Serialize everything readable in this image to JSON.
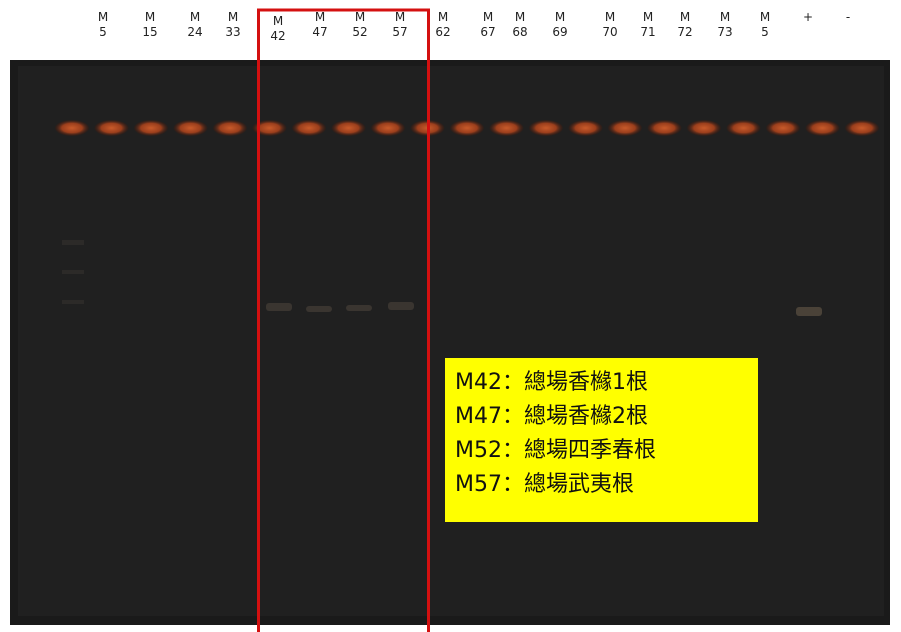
{
  "lanes": [
    {
      "top": "M",
      "bottom": "5"
    },
    {
      "top": "M",
      "bottom": "15"
    },
    {
      "top": "M",
      "bottom": "24"
    },
    {
      "top": "M",
      "bottom": "33"
    },
    {
      "top": "M",
      "bottom": "42"
    },
    {
      "top": "M",
      "bottom": "47"
    },
    {
      "top": "M",
      "bottom": "52"
    },
    {
      "top": "M",
      "bottom": "57"
    },
    {
      "top": "M",
      "bottom": "62"
    },
    {
      "top": "M",
      "bottom": "67"
    },
    {
      "top": "M",
      "bottom": "68"
    },
    {
      "top": "M",
      "bottom": "69"
    },
    {
      "top": "M",
      "bottom": "70"
    },
    {
      "top": "M",
      "bottom": "71"
    },
    {
      "top": "M",
      "bottom": "72"
    },
    {
      "top": "M",
      "bottom": "73"
    },
    {
      "top": "M",
      "bottom": "5"
    },
    {
      "top": "+"
    },
    {
      "top": "-"
    }
  ],
  "legend": [
    "M42：總場香櫞1根",
    "M47：總場香櫞2根",
    "M52：總場四季春根",
    "M57：總場武夷根"
  ]
}
